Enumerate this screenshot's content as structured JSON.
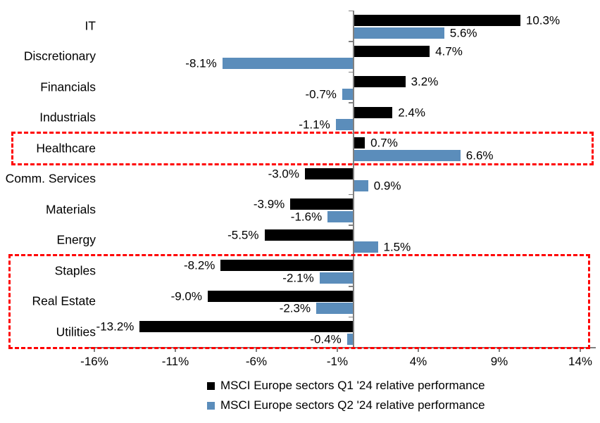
{
  "chart_data": {
    "type": "bar",
    "orientation": "horizontal",
    "title": "",
    "categories": [
      "IT",
      "Discretionary",
      "Financials",
      "Industrials",
      "Healthcare",
      "Comm. Services",
      "Materials",
      "Energy",
      "Staples",
      "Real Estate",
      "Utilities"
    ],
    "series": [
      {
        "name": "MSCI Europe sectors Q1 '24 relative performance",
        "color": "#000000",
        "values": [
          10.3,
          4.7,
          3.2,
          2.4,
          0.7,
          -3.0,
          -3.9,
          -5.5,
          -8.2,
          -9.0,
          -13.2
        ],
        "labels": [
          "10.3%",
          "4.7%",
          "3.2%",
          "2.4%",
          "0.7%",
          "-3.0%",
          "-3.9%",
          "-5.5%",
          "-8.2%",
          "-9.0%",
          "-13.2%"
        ]
      },
      {
        "name": "MSCI Europe sectors Q2 '24 relative performance",
        "color": "#5B8DBB",
        "values": [
          5.6,
          -8.1,
          -0.7,
          -1.1,
          6.6,
          0.9,
          -1.6,
          1.5,
          -2.1,
          -2.3,
          -0.4
        ],
        "labels": [
          "5.6%",
          "-8.1%",
          "-0.7%",
          "-1.1%",
          "6.6%",
          "0.9%",
          "-1.6%",
          "1.5%",
          "-2.1%",
          "-2.3%",
          "-0.4%"
        ]
      }
    ],
    "x_axis": {
      "range": [
        -16.5,
        15
      ],
      "unit": "%",
      "ticks": [
        {
          "value": -16,
          "label": "-16%"
        },
        {
          "value": -11,
          "label": "-11%"
        },
        {
          "value": -6,
          "label": "-6%"
        },
        {
          "value": -1,
          "label": "-1%"
        },
        {
          "value": 4,
          "label": "4%"
        },
        {
          "value": 9,
          "label": "9%"
        },
        {
          "value": 14,
          "label": "14%"
        }
      ]
    },
    "axis_color": "#808080",
    "grid": false,
    "legend_position": "bottom",
    "highlights": {
      "color": "#FF0000",
      "style": "dashed",
      "ranges": [
        {
          "from": "Healthcare",
          "to": "Healthcare"
        },
        {
          "from": "Staples",
          "to": "Utilities"
        }
      ]
    }
  }
}
